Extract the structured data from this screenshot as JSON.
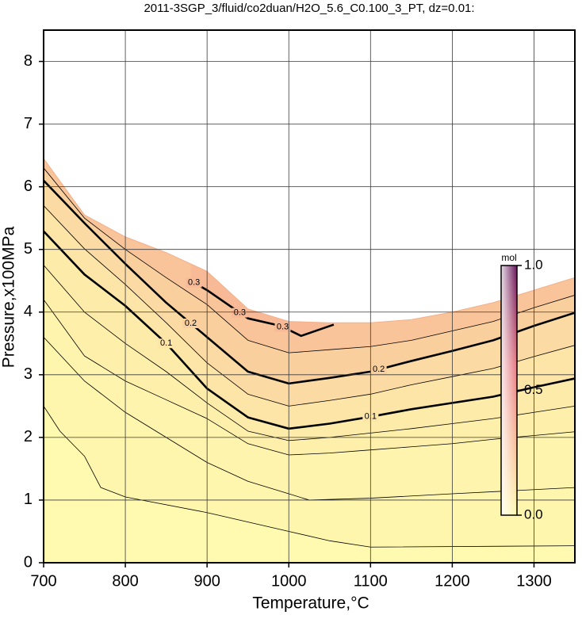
{
  "chart_data": {
    "type": "contour",
    "title": "2011-3SGP_3/fluid/co2duan/H2O_5.6_C0.100_3_PT, dz=0.01:",
    "x_label": "Temperature,°C",
    "y_label": "Pressure,x100MPa",
    "xlim": [
      700,
      1350
    ],
    "xticks": [
      700,
      800,
      900,
      1000,
      1100,
      1200,
      1300
    ],
    "ylim": [
      0,
      8.5
    ],
    "yticks": [
      0,
      1,
      2,
      3,
      4,
      5,
      6,
      7,
      8
    ],
    "grid": true,
    "colorbar_label": "mol",
    "clim": [
      0,
      1
    ],
    "cticks": [
      {
        "value": 0,
        "label": "0.0"
      },
      {
        "value": 0.5,
        "label": "0.5"
      },
      {
        "value": 1,
        "label": "1.0"
      }
    ],
    "colormap": [
      {
        "value": 0,
        "color": "#fffaaf"
      },
      {
        "value": 0.3,
        "color": "#f8b996"
      },
      {
        "value": 0.6,
        "color": "#e67882"
      },
      {
        "value": 1,
        "color": "#64145a"
      }
    ],
    "boundary": {
      "x": [
        700,
        750,
        800,
        850,
        900,
        950,
        1000,
        1050,
        1100,
        1150,
        1200,
        1250,
        1300,
        1350
      ],
      "y": [
        6.45,
        5.55,
        5.2,
        4.95,
        4.65,
        4.05,
        3.85,
        3.83,
        3.83,
        3.88,
        4.0,
        4.15,
        4.35,
        4.55
      ]
    },
    "contours": [
      {
        "level": 0.02,
        "labeled": false,
        "x": [
          700,
          720,
          750,
          770,
          800,
          900,
          1000,
          1050,
          1100,
          1350
        ],
        "y": [
          2.5,
          2.1,
          1.7,
          1.2,
          1.05,
          0.8,
          0.5,
          0.35,
          0.25,
          0.27
        ]
      },
      {
        "level": 0.03,
        "labeled": false,
        "x": [
          700,
          750,
          800,
          850,
          900,
          950,
          1000,
          1025,
          1100,
          1200,
          1350
        ],
        "y": [
          3.6,
          2.9,
          2.4,
          2.0,
          1.6,
          1.3,
          1.1,
          1.0,
          1.03,
          1.1,
          1.2
        ]
      },
      {
        "level": 0.05,
        "labeled": false,
        "x": [
          700,
          750,
          800,
          850,
          900,
          950,
          1000,
          1050,
          1100,
          1150,
          1200,
          1250,
          1300,
          1350
        ],
        "y": [
          4.2,
          3.3,
          2.9,
          2.6,
          2.3,
          1.9,
          1.72,
          1.75,
          1.8,
          1.85,
          1.9,
          1.97,
          2.03,
          2.09
        ]
      },
      {
        "level": 0.07,
        "labeled": false,
        "x": [
          700,
          750,
          800,
          850,
          900,
          950,
          1000,
          1050,
          1100,
          1150,
          1200,
          1250,
          1300,
          1350
        ],
        "y": [
          4.75,
          4.0,
          3.5,
          3.05,
          2.55,
          2.1,
          1.95,
          2.0,
          2.07,
          2.14,
          2.22,
          2.3,
          2.4,
          2.5
        ]
      },
      {
        "level": 0.1,
        "labeled": true,
        "x": [
          700,
          750,
          800,
          850,
          900,
          950,
          1000,
          1050,
          1100,
          1150,
          1200,
          1250,
          1300,
          1350
        ],
        "y": [
          5.29,
          4.6,
          4.1,
          3.5,
          2.78,
          2.32,
          2.14,
          2.22,
          2.33,
          2.45,
          2.55,
          2.65,
          2.8,
          2.94
        ]
      },
      {
        "level": 0.15,
        "labeled": false,
        "x": [
          700,
          750,
          800,
          850,
          900,
          950,
          1000,
          1050,
          1100,
          1150,
          1200,
          1250,
          1300,
          1350
        ],
        "y": [
          5.7,
          5.01,
          4.44,
          3.83,
          3.19,
          2.69,
          2.5,
          2.59,
          2.69,
          2.84,
          2.97,
          3.1,
          3.29,
          3.47
        ]
      },
      {
        "level": 0.2,
        "labeled": true,
        "x": [
          700,
          750,
          800,
          850,
          900,
          950,
          1000,
          1050,
          1100,
          1150,
          1200,
          1250,
          1300,
          1350
        ],
        "y": [
          6.1,
          5.42,
          4.77,
          4.15,
          3.6,
          3.05,
          2.86,
          2.95,
          3.05,
          3.22,
          3.38,
          3.55,
          3.78,
          3.99
        ]
      },
      {
        "level": 0.25,
        "labeled": false,
        "x": [
          700,
          750,
          800,
          850,
          900,
          950,
          1000,
          1050,
          1100,
          1150,
          1200,
          1250,
          1300,
          1350
        ],
        "y": [
          6.3,
          5.5,
          5.0,
          4.55,
          4.12,
          3.55,
          3.35,
          3.4,
          3.45,
          3.55,
          3.7,
          3.85,
          4.07,
          4.27
        ]
      },
      {
        "level": 0.3,
        "labeled": true,
        "x": [
          880,
          900,
          950,
          990,
          1015,
          1055
        ],
        "y": [
          4.5,
          4.35,
          3.9,
          3.78,
          3.62,
          3.8
        ]
      }
    ]
  }
}
